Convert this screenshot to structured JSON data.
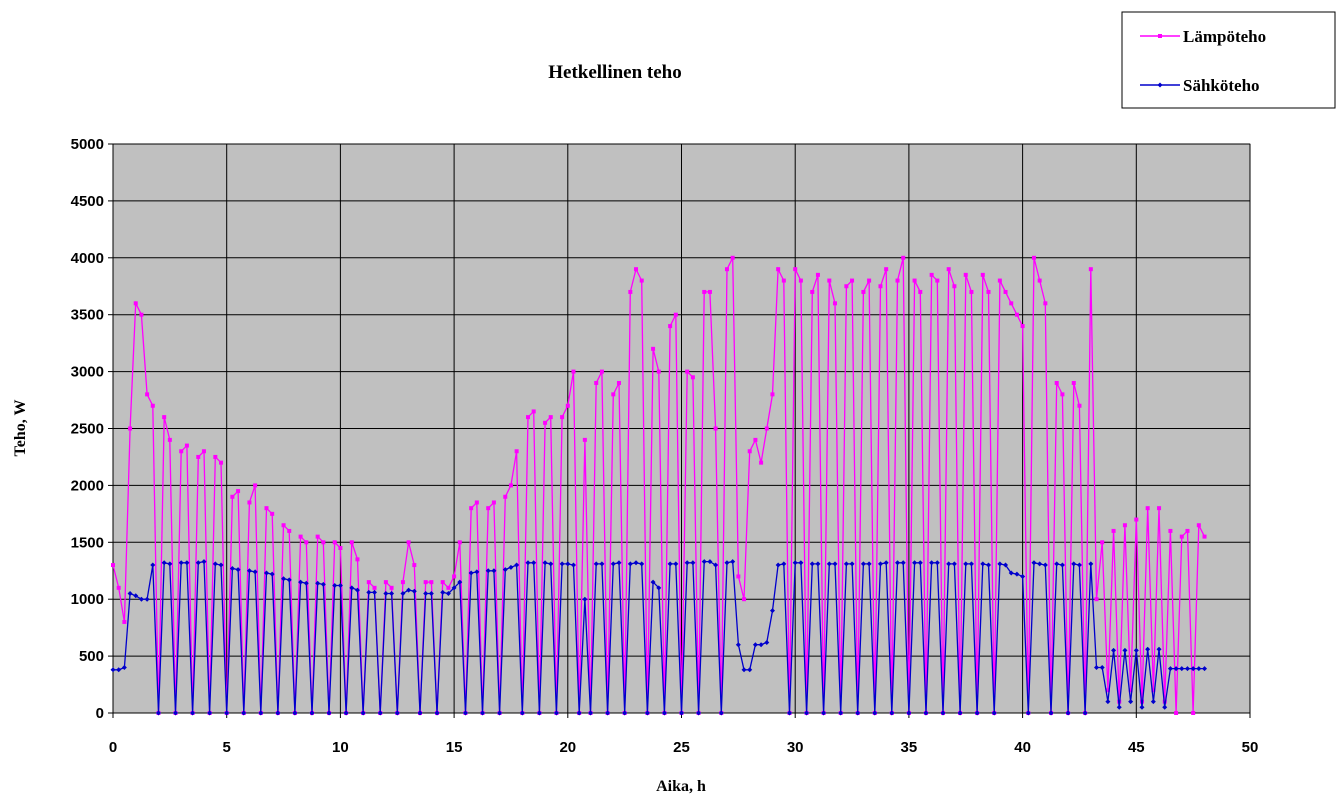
{
  "chart_data": {
    "type": "line",
    "title": "Hetkellinen teho",
    "xlabel": "Aika, h",
    "ylabel": "Teho, W",
    "xlim": [
      0,
      50
    ],
    "xticks": [
      0,
      5,
      10,
      15,
      20,
      25,
      30,
      35,
      40,
      45,
      50
    ],
    "ylim": [
      0,
      5000
    ],
    "yticks": [
      0,
      500,
      1000,
      1500,
      2000,
      2500,
      3000,
      3500,
      4000,
      4500,
      5000
    ],
    "grid": true,
    "legend": "top-right",
    "x": [
      0,
      0.25,
      0.5,
      0.75,
      1,
      1.25,
      1.5,
      1.75,
      2,
      2.25,
      2.5,
      2.75,
      3,
      3.25,
      3.5,
      3.75,
      4,
      4.25,
      4.5,
      4.75,
      5,
      5.25,
      5.5,
      5.75,
      6,
      6.25,
      6.5,
      6.75,
      7,
      7.25,
      7.5,
      7.75,
      8,
      8.25,
      8.5,
      8.75,
      9,
      9.25,
      9.5,
      9.75,
      10,
      10.25,
      10.5,
      10.75,
      11,
      11.25,
      11.5,
      11.75,
      12,
      12.25,
      12.5,
      12.75,
      13,
      13.25,
      13.5,
      13.75,
      14,
      14.25,
      14.5,
      14.75,
      15,
      15.25,
      15.5,
      15.75,
      16,
      16.25,
      16.5,
      16.75,
      17,
      17.25,
      17.5,
      17.75,
      18,
      18.25,
      18.5,
      18.75,
      19,
      19.25,
      19.5,
      19.75,
      20,
      20.25,
      20.5,
      20.75,
      21,
      21.25,
      21.5,
      21.75,
      22,
      22.25,
      22.5,
      22.75,
      23,
      23.25,
      23.5,
      23.75,
      24,
      24.25,
      24.5,
      24.75,
      25,
      25.25,
      25.5,
      25.75,
      26,
      26.25,
      26.5,
      26.75,
      27,
      27.25,
      27.5,
      27.75,
      28,
      28.25,
      28.5,
      28.75,
      29,
      29.25,
      29.5,
      29.75,
      30,
      30.25,
      30.5,
      30.75,
      31,
      31.25,
      31.5,
      31.75,
      32,
      32.25,
      32.5,
      32.75,
      33,
      33.25,
      33.5,
      33.75,
      34,
      34.25,
      34.5,
      34.75,
      35,
      35.25,
      35.5,
      35.75,
      36,
      36.25,
      36.5,
      36.75,
      37,
      37.25,
      37.5,
      37.75,
      38,
      38.25,
      38.5,
      38.75,
      39,
      39.25,
      39.5,
      39.75,
      40,
      40.25,
      40.5,
      40.75,
      41,
      41.25,
      41.5,
      41.75,
      42,
      42.25,
      42.5,
      42.75,
      43,
      43.25,
      43.5,
      43.75,
      44,
      44.25,
      44.5,
      44.75,
      45,
      45.25,
      45.5,
      45.75,
      46,
      46.25,
      46.5,
      46.75,
      47,
      47.25,
      47.5,
      47.75,
      48
    ],
    "series": [
      {
        "name": "Lämpöteho",
        "color": "#ff00ff",
        "marker": "square",
        "values": [
          1300,
          1100,
          800,
          2500,
          3600,
          3500,
          2800,
          2700,
          0,
          2600,
          2400,
          0,
          2300,
          2350,
          0,
          2250,
          2300,
          0,
          2250,
          2200,
          0,
          1900,
          1950,
          0,
          1850,
          2000,
          0,
          1800,
          1750,
          0,
          1650,
          1600,
          0,
          1550,
          1500,
          0,
          1550,
          1500,
          0,
          1500,
          1450,
          0,
          1500,
          1350,
          0,
          1150,
          1100,
          0,
          1150,
          1100,
          0,
          1150,
          1500,
          1300,
          0,
          1150,
          1150,
          0,
          1150,
          1100,
          1200,
          1500,
          0,
          1800,
          1850,
          0,
          1800,
          1850,
          0,
          1900,
          2000,
          2300,
          0,
          2600,
          2650,
          0,
          2550,
          2600,
          0,
          2600,
          2700,
          3000,
          0,
          2400,
          0,
          2900,
          3000,
          0,
          2800,
          2900,
          0,
          3700,
          3900,
          3800,
          0,
          3200,
          3000,
          0,
          3400,
          3500,
          0,
          3000,
          2950,
          0,
          3700,
          3700,
          2500,
          0,
          3900,
          4000,
          1200,
          1000,
          2300,
          2400,
          2200,
          2500,
          2800,
          3900,
          3800,
          0,
          3900,
          3800,
          0,
          3700,
          3850,
          0,
          3800,
          3600,
          0,
          3750,
          3800,
          0,
          3700,
          3800,
          0,
          3750,
          3900,
          0,
          3800,
          4000,
          0,
          3800,
          3700,
          0,
          3850,
          3800,
          0,
          3900,
          3750,
          0,
          3850,
          3700,
          0,
          3850,
          3700,
          0,
          3800,
          3700,
          3600,
          3500,
          3400,
          0,
          4000,
          3800,
          3600,
          0,
          2900,
          2800,
          0,
          2900,
          2700,
          0,
          3900,
          1000,
          1500,
          200,
          1600,
          100,
          1650,
          200,
          1700,
          100,
          1800,
          200,
          1800,
          100,
          1600,
          0,
          1550,
          1600,
          0,
          1650,
          1550
        ]
      },
      {
        "name": "Sähköteho",
        "color": "#0000cc",
        "marker": "diamond",
        "values": [
          380,
          380,
          400,
          1050,
          1030,
          1000,
          1000,
          1300,
          0,
          1320,
          1310,
          0,
          1320,
          1320,
          0,
          1320,
          1330,
          0,
          1310,
          1300,
          0,
          1270,
          1260,
          0,
          1250,
          1240,
          0,
          1230,
          1220,
          0,
          1180,
          1170,
          0,
          1150,
          1140,
          0,
          1140,
          1130,
          0,
          1120,
          1120,
          0,
          1100,
          1080,
          0,
          1060,
          1060,
          0,
          1050,
          1050,
          0,
          1050,
          1080,
          1070,
          0,
          1050,
          1050,
          0,
          1060,
          1050,
          1100,
          1150,
          0,
          1230,
          1240,
          0,
          1250,
          1250,
          0,
          1260,
          1280,
          1300,
          0,
          1320,
          1320,
          0,
          1320,
          1310,
          0,
          1310,
          1310,
          1300,
          0,
          1000,
          0,
          1310,
          1310,
          0,
          1310,
          1320,
          0,
          1310,
          1320,
          1310,
          0,
          1150,
          1100,
          0,
          1310,
          1310,
          0,
          1320,
          1320,
          0,
          1330,
          1330,
          1300,
          0,
          1320,
          1330,
          600,
          380,
          380,
          600,
          600,
          620,
          900,
          1300,
          1310,
          0,
          1320,
          1320,
          0,
          1310,
          1310,
          0,
          1310,
          1310,
          0,
          1310,
          1310,
          0,
          1310,
          1310,
          0,
          1310,
          1320,
          0,
          1320,
          1320,
          0,
          1320,
          1320,
          0,
          1320,
          1320,
          0,
          1310,
          1310,
          0,
          1310,
          1310,
          0,
          1310,
          1300,
          0,
          1310,
          1300,
          1230,
          1220,
          1200,
          0,
          1320,
          1310,
          1300,
          0,
          1310,
          1300,
          0,
          1310,
          1300,
          0,
          1310,
          400,
          400,
          100,
          550,
          50,
          550,
          100,
          550,
          50,
          560,
          100,
          560,
          50,
          390,
          390,
          390,
          390,
          390,
          390,
          390
        ]
      }
    ]
  }
}
